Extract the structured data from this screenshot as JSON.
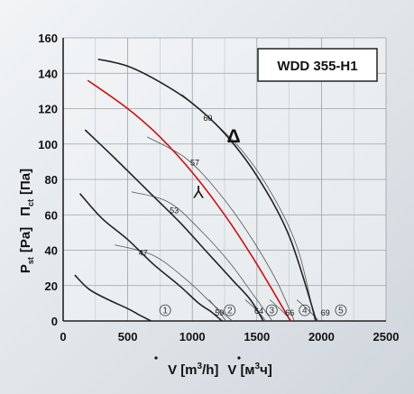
{
  "chart_data": {
    "type": "line",
    "model": "WDD 355-H1",
    "xlim": [
      0,
      2500
    ],
    "ylim": [
      0,
      160
    ],
    "x_ticks": [
      0,
      500,
      1000,
      1500,
      2000,
      2500
    ],
    "y_ticks": [
      0,
      20,
      40,
      60,
      80,
      100,
      120,
      140,
      160
    ],
    "xlabel_parts": {
      "q1": "V",
      "u1": "[m",
      "e1": "3",
      "r1": "/h]",
      "q2": "V",
      "u2": "[м",
      "e2": "3",
      "r2": "ч]"
    },
    "ylabel_parts": {
      "p": "P",
      "ps": "st",
      "pu": "[Pa]",
      "n": "П",
      "ns": "ct",
      "nu": "[Па]"
    },
    "connection_symbols": {
      "delta": "Δ",
      "star": "Y"
    },
    "series": [
      {
        "color": "#222222",
        "x": [
          270,
          500,
          750,
          1000,
          1250,
          1500,
          1750,
          1960
        ],
        "y": [
          148,
          144,
          135,
          123,
          106,
          82,
          48,
          0
        ]
      },
      {
        "color": "#cc1111",
        "x": [
          190,
          500,
          750,
          1000,
          1250,
          1450,
          1600,
          1760
        ],
        "y": [
          136,
          120,
          104,
          84,
          60,
          38,
          20,
          0
        ]
      },
      {
        "color": "#222222",
        "x": [
          170,
          400,
          650,
          900,
          1100,
          1300,
          1450,
          1550
        ],
        "y": [
          108,
          92,
          74,
          56,
          40,
          24,
          12,
          0
        ]
      },
      {
        "color": "#222222",
        "x": [
          130,
          300,
          500,
          700,
          900,
          1050,
          1150,
          1230
        ],
        "y": [
          72,
          58,
          46,
          32,
          20,
          10,
          5,
          0
        ]
      },
      {
        "color": "#222222",
        "x": [
          90,
          200,
          350,
          500,
          600,
          680
        ],
        "y": [
          26,
          18,
          12,
          7,
          3,
          0
        ]
      }
    ],
    "efficiency_curves": [
      {
        "label": "60",
        "x": [
          920,
          1130,
          1400,
          1630,
          1820,
          1950
        ],
        "y": [
          128,
          115,
          95,
          70,
          40,
          0
        ]
      },
      {
        "label": "57",
        "x": [
          650,
          950,
          1200,
          1430,
          1650,
          1790
        ],
        "y": [
          104,
          92,
          73,
          50,
          23,
          0
        ]
      },
      {
        "label": "53",
        "x": [
          530,
          820,
          1080,
          1300,
          1480,
          1620
        ],
        "y": [
          73,
          67,
          50,
          32,
          14,
          0
        ]
      },
      {
        "label": "47",
        "x": [
          400,
          700,
          960,
          1150,
          1310
        ],
        "y": [
          43,
          37,
          23,
          10,
          0
        ]
      },
      {
        "label": "59",
        "x": [
          1130,
          1200,
          1260
        ],
        "y": [
          12,
          6,
          0
        ]
      },
      {
        "label": "64",
        "x": [
          1410,
          1500,
          1570
        ],
        "y": [
          12,
          6,
          0
        ]
      },
      {
        "label": "66",
        "x": [
          1600,
          1690,
          1770
        ],
        "y": [
          12,
          6,
          0
        ]
      },
      {
        "label": "69",
        "x": [
          1810,
          1900,
          1980
        ],
        "y": [
          12,
          6,
          0
        ]
      }
    ],
    "curve_value_labels": [
      {
        "text": "60",
        "x": 1120,
        "y": 113
      },
      {
        "text": "57",
        "x": 1020,
        "y": 88
      },
      {
        "text": "53",
        "x": 860,
        "y": 61
      },
      {
        "text": "47",
        "x": 620,
        "y": 37
      },
      {
        "text": "59",
        "x": 1210,
        "y": 3
      },
      {
        "text": "64",
        "x": 1515,
        "y": 4
      },
      {
        "text": "66",
        "x": 1755,
        "y": 3
      },
      {
        "text": "69",
        "x": 2030,
        "y": 3
      }
    ],
    "curve_numbers": [
      {
        "text": "1",
        "x": 790,
        "y": 4
      },
      {
        "text": "2",
        "x": 1290,
        "y": 4
      },
      {
        "text": "3",
        "x": 1615,
        "y": 4
      },
      {
        "text": "4",
        "x": 1870,
        "y": 4
      },
      {
        "text": "5",
        "x": 2150,
        "y": 4
      }
    ],
    "grid": true
  }
}
